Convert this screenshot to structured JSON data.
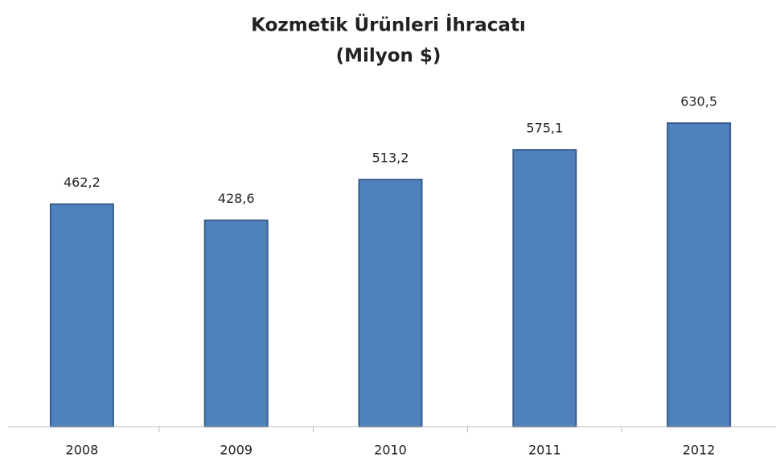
{
  "chart_data": {
    "type": "bar",
    "title": "Kozmetik Ürünleri İhracatı",
    "subtitle": "(Milyon $)",
    "categories": [
      "2008",
      "2009",
      "2010",
      "2011",
      "2012"
    ],
    "values": [
      462.2,
      428.6,
      513.2,
      575.1,
      630.5
    ],
    "value_labels": [
      "462,2",
      "428,6",
      "513,2",
      "575,1",
      "630,5"
    ],
    "color": "#4f81bd"
  }
}
